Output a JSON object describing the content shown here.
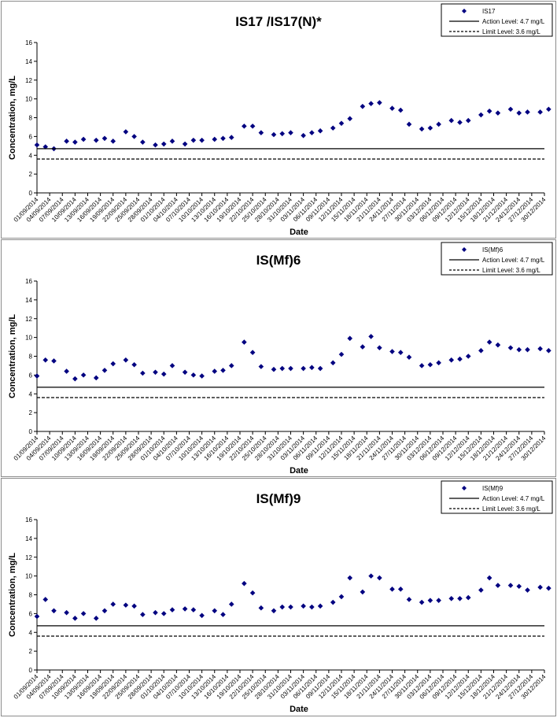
{
  "chart_data": [
    {
      "type": "scatter",
      "title": "IS17 /IS17(N)*",
      "xlabel": "Date",
      "ylabel": "Concentration, mg/L",
      "ylim": [
        0,
        16
      ],
      "yticks": [
        0,
        2,
        4,
        6,
        8,
        10,
        12,
        14,
        16
      ],
      "xlim": [
        "2014-09-01",
        "2014-12-30"
      ],
      "xtick_labels": [
        "01/09/2014",
        "04/09/2014",
        "07/09/2014",
        "10/09/2014",
        "13/09/2014",
        "16/09/2014",
        "19/09/2014",
        "22/09/2014",
        "25/09/2014",
        "28/09/2014",
        "01/10/2014",
        "04/10/2014",
        "07/10/2014",
        "10/10/2014",
        "13/10/2014",
        "16/10/2014",
        "19/10/2014",
        "22/10/2014",
        "25/10/2014",
        "28/10/2014",
        "31/10/2014",
        "03/11/2014",
        "06/11/2014",
        "09/11/2014",
        "12/11/2014",
        "15/11/2014",
        "18/11/2014",
        "21/11/2014",
        "24/11/2014",
        "27/11/2014",
        "30/11/2014",
        "03/12/2014",
        "06/12/2014",
        "09/12/2014",
        "12/12/2014",
        "15/12/2014",
        "18/12/2014",
        "21/12/2014",
        "24/12/2014",
        "27/12/2014",
        "30/12/2014"
      ],
      "grid": false,
      "legend_position": "top-right",
      "series": [
        {
          "name": "IS17",
          "marker": "diamond",
          "color": "#000080",
          "x": [
            "2014-09-01",
            "2014-09-03",
            "2014-09-05",
            "2014-09-08",
            "2014-09-10",
            "2014-09-12",
            "2014-09-15",
            "2014-09-17",
            "2014-09-19",
            "2014-09-22",
            "2014-09-24",
            "2014-09-26",
            "2014-09-29",
            "2014-10-01",
            "2014-10-03",
            "2014-10-06",
            "2014-10-08",
            "2014-10-10",
            "2014-10-13",
            "2014-10-15",
            "2014-10-17",
            "2014-10-20",
            "2014-10-22",
            "2014-10-24",
            "2014-10-27",
            "2014-10-29",
            "2014-10-31",
            "2014-11-03",
            "2014-11-05",
            "2014-11-07",
            "2014-11-10",
            "2014-11-12",
            "2014-11-14",
            "2014-11-17",
            "2014-11-19",
            "2014-11-21",
            "2014-11-24",
            "2014-11-26",
            "2014-11-28",
            "2014-12-01",
            "2014-12-03",
            "2014-12-05",
            "2014-12-08",
            "2014-12-10",
            "2014-12-12",
            "2014-12-15",
            "2014-12-17",
            "2014-12-19",
            "2014-12-22",
            "2014-12-24",
            "2014-12-26",
            "2014-12-29",
            "2014-12-31"
          ],
          "y": [
            5.1,
            4.9,
            4.7,
            5.5,
            5.4,
            5.7,
            5.6,
            5.8,
            5.5,
            6.5,
            6.0,
            5.4,
            5.1,
            5.2,
            5.5,
            5.2,
            5.6,
            5.6,
            5.7,
            5.8,
            5.9,
            7.1,
            7.1,
            6.4,
            6.2,
            6.3,
            6.4,
            6.1,
            6.4,
            6.6,
            6.9,
            7.4,
            7.9,
            9.2,
            9.5,
            9.6,
            9.0,
            8.8,
            7.3,
            6.8,
            6.9,
            7.3,
            7.7,
            7.5,
            7.7,
            8.3,
            8.7,
            8.5,
            8.9,
            8.5,
            8.6,
            8.6,
            8.9
          ]
        },
        {
          "name": "Action Level: 4.7 mg/L",
          "line": "solid",
          "color": "#000000",
          "x": [
            "2014-09-01",
            "2014-12-31"
          ],
          "y": [
            4.7,
            4.7
          ]
        },
        {
          "name": "Limit Level: 3.6 mg/L",
          "line": "dashed",
          "color": "#000000",
          "x": [
            "2014-09-01",
            "2014-12-31"
          ],
          "y": [
            3.6,
            3.6
          ]
        }
      ]
    },
    {
      "type": "scatter",
      "title": "IS(Mf)6",
      "xlabel": "Date",
      "ylabel": "Concentration, mg/L",
      "ylim": [
        0,
        16
      ],
      "yticks": [
        0,
        2,
        4,
        6,
        8,
        10,
        12,
        14,
        16
      ],
      "xlim": [
        "2014-09-01",
        "2014-12-30"
      ],
      "xtick_labels": [
        "01/09/2014",
        "04/09/2014",
        "07/09/2014",
        "10/09/2014",
        "13/09/2014",
        "16/09/2014",
        "19/09/2014",
        "22/09/2014",
        "25/09/2014",
        "28/09/2014",
        "01/10/2014",
        "04/10/2014",
        "07/10/2014",
        "10/10/2014",
        "13/10/2014",
        "16/10/2014",
        "19/10/2014",
        "22/10/2014",
        "25/10/2014",
        "28/10/2014",
        "31/10/2014",
        "03/11/2014",
        "06/11/2014",
        "09/11/2014",
        "12/11/2014",
        "15/11/2014",
        "18/11/2014",
        "21/11/2014",
        "24/11/2014",
        "27/11/2014",
        "30/11/2014",
        "03/12/2014",
        "06/12/2014",
        "09/12/2014",
        "12/12/2014",
        "15/12/2014",
        "18/12/2014",
        "21/12/2014",
        "24/12/2014",
        "27/12/2014",
        "30/12/2014"
      ],
      "grid": false,
      "legend_position": "top-right",
      "series": [
        {
          "name": "IS(Mf)6",
          "marker": "diamond",
          "color": "#000080",
          "x": [
            "2014-09-01",
            "2014-09-03",
            "2014-09-05",
            "2014-09-08",
            "2014-09-10",
            "2014-09-12",
            "2014-09-15",
            "2014-09-17",
            "2014-09-19",
            "2014-09-22",
            "2014-09-24",
            "2014-09-26",
            "2014-09-29",
            "2014-10-01",
            "2014-10-03",
            "2014-10-06",
            "2014-10-08",
            "2014-10-10",
            "2014-10-13",
            "2014-10-15",
            "2014-10-17",
            "2014-10-20",
            "2014-10-22",
            "2014-10-24",
            "2014-10-27",
            "2014-10-29",
            "2014-10-31",
            "2014-11-03",
            "2014-11-05",
            "2014-11-07",
            "2014-11-10",
            "2014-11-12",
            "2014-11-14",
            "2014-11-17",
            "2014-11-19",
            "2014-11-21",
            "2014-11-24",
            "2014-11-26",
            "2014-11-28",
            "2014-12-01",
            "2014-12-03",
            "2014-12-05",
            "2014-12-08",
            "2014-12-10",
            "2014-12-12",
            "2014-12-15",
            "2014-12-17",
            "2014-12-19",
            "2014-12-22",
            "2014-12-24",
            "2014-12-26",
            "2014-12-29",
            "2014-12-31"
          ],
          "y": [
            5.9,
            7.6,
            7.5,
            6.4,
            5.6,
            6.0,
            5.7,
            6.5,
            7.2,
            7.6,
            7.1,
            6.2,
            6.3,
            6.1,
            7.0,
            6.3,
            6.0,
            5.9,
            6.4,
            6.5,
            7.0,
            9.5,
            8.4,
            6.9,
            6.6,
            6.7,
            6.7,
            6.7,
            6.8,
            6.7,
            7.3,
            8.2,
            9.9,
            9.0,
            10.1,
            8.9,
            8.5,
            8.4,
            7.9,
            7.0,
            7.1,
            7.3,
            7.6,
            7.7,
            8.0,
            8.6,
            9.5,
            9.2,
            8.9,
            8.7,
            8.7,
            8.8,
            8.6
          ]
        },
        {
          "name": "Action Level: 4.7 mg/L",
          "line": "solid",
          "color": "#000000",
          "x": [
            "2014-09-01",
            "2014-12-31"
          ],
          "y": [
            4.7,
            4.7
          ]
        },
        {
          "name": "Limit Level: 3.6 mg/L",
          "line": "dashed",
          "color": "#000000",
          "x": [
            "2014-09-01",
            "2014-12-31"
          ],
          "y": [
            3.6,
            3.6
          ]
        }
      ]
    },
    {
      "type": "scatter",
      "title": "IS(Mf)9",
      "xlabel": "Date",
      "ylabel": "Concentration, mg/L",
      "ylim": [
        0,
        16
      ],
      "yticks": [
        0,
        2,
        4,
        6,
        8,
        10,
        12,
        14,
        16
      ],
      "xlim": [
        "2014-09-01",
        "2014-12-30"
      ],
      "xtick_labels": [
        "01/09/2014",
        "04/09/2014",
        "07/09/2014",
        "10/09/2014",
        "13/09/2014",
        "16/09/2014",
        "19/09/2014",
        "22/09/2014",
        "25/09/2014",
        "28/09/2014",
        "01/10/2014",
        "04/10/2014",
        "07/10/2014",
        "10/10/2014",
        "13/10/2014",
        "16/10/2014",
        "19/10/2014",
        "22/10/2014",
        "25/10/2014",
        "28/10/2014",
        "31/10/2014",
        "03/11/2014",
        "06/11/2014",
        "09/11/2014",
        "12/11/2014",
        "15/11/2014",
        "18/11/2014",
        "21/11/2014",
        "24/11/2014",
        "27/11/2014",
        "30/11/2014",
        "03/12/2014",
        "06/12/2014",
        "09/12/2014",
        "12/12/2014",
        "15/12/2014",
        "18/12/2014",
        "21/12/2014",
        "24/12/2014",
        "27/12/2014",
        "30/12/2014"
      ],
      "grid": false,
      "legend_position": "top-right",
      "series": [
        {
          "name": "IS(Mf)9",
          "marker": "diamond",
          "color": "#000080",
          "x": [
            "2014-09-01",
            "2014-09-03",
            "2014-09-05",
            "2014-09-08",
            "2014-09-10",
            "2014-09-12",
            "2014-09-15",
            "2014-09-17",
            "2014-09-19",
            "2014-09-22",
            "2014-09-24",
            "2014-09-26",
            "2014-09-29",
            "2014-10-01",
            "2014-10-03",
            "2014-10-06",
            "2014-10-08",
            "2014-10-10",
            "2014-10-13",
            "2014-10-15",
            "2014-10-17",
            "2014-10-20",
            "2014-10-22",
            "2014-10-24",
            "2014-10-27",
            "2014-10-29",
            "2014-10-31",
            "2014-11-03",
            "2014-11-05",
            "2014-11-07",
            "2014-11-10",
            "2014-11-12",
            "2014-11-14",
            "2014-11-17",
            "2014-11-19",
            "2014-11-21",
            "2014-11-24",
            "2014-11-26",
            "2014-11-28",
            "2014-12-01",
            "2014-12-03",
            "2014-12-05",
            "2014-12-08",
            "2014-12-10",
            "2014-12-12",
            "2014-12-15",
            "2014-12-17",
            "2014-12-19",
            "2014-12-22",
            "2014-12-24",
            "2014-12-26",
            "2014-12-29",
            "2014-12-31"
          ],
          "y": [
            5.7,
            7.5,
            6.3,
            6.1,
            5.5,
            6.0,
            5.5,
            6.3,
            7.0,
            6.9,
            6.8,
            5.9,
            6.1,
            6.0,
            6.4,
            6.5,
            6.4,
            5.8,
            6.3,
            5.9,
            7.0,
            9.2,
            8.2,
            6.6,
            6.3,
            6.7,
            6.7,
            6.8,
            6.7,
            6.8,
            7.2,
            7.8,
            9.8,
            8.3,
            10.0,
            9.8,
            8.6,
            8.6,
            7.5,
            7.2,
            7.4,
            7.4,
            7.6,
            7.6,
            7.7,
            8.5,
            9.8,
            9.0,
            9.0,
            8.9,
            8.5,
            8.8,
            8.7
          ]
        },
        {
          "name": "Action Level: 4.7 mg/L",
          "line": "solid",
          "color": "#000000",
          "x": [
            "2014-09-01",
            "2014-12-31"
          ],
          "y": [
            4.7,
            4.7
          ]
        },
        {
          "name": "Limit Level: 3.6 mg/L",
          "line": "dashed",
          "color": "#000000",
          "x": [
            "2014-09-01",
            "2014-12-31"
          ],
          "y": [
            3.6,
            3.6
          ]
        }
      ]
    }
  ]
}
